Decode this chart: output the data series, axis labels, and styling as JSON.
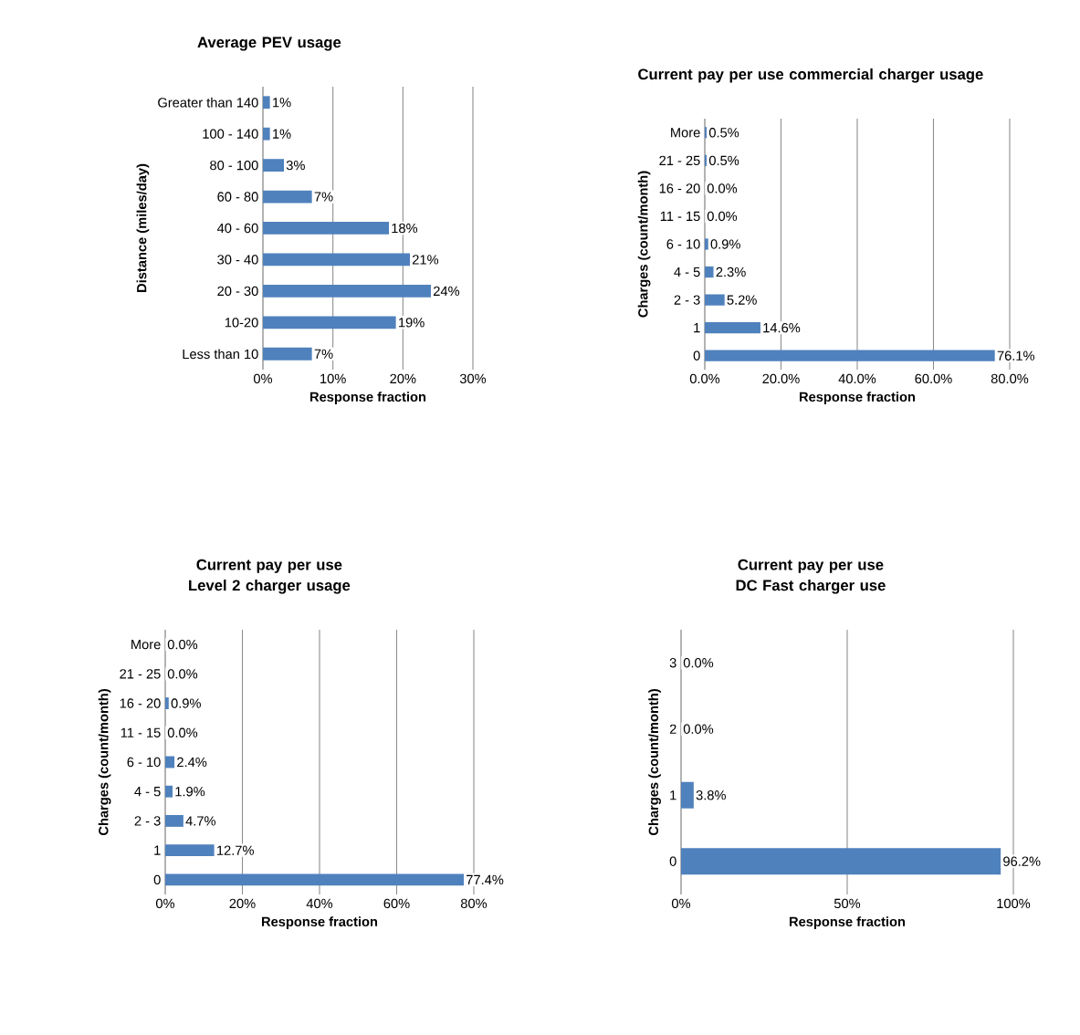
{
  "chart_data": [
    {
      "type": "bar",
      "orientation": "horizontal",
      "title": "Average PEV usage",
      "xlabel": "Response fraction",
      "ylabel": "Distance (miles/day)",
      "categories": [
        "Greater than 140",
        "100 - 140",
        "80 - 100",
        "60 - 80",
        "40 - 60",
        "30 - 40",
        "20 - 30",
        "10-20",
        "Less than 10"
      ],
      "values": [
        1,
        1,
        3,
        7,
        18,
        21,
        24,
        19,
        7
      ],
      "value_labels": [
        "1%",
        "1%",
        "3%",
        "7%",
        "18%",
        "21%",
        "24%",
        "19%",
        "7%"
      ],
      "color": "#4f81bd",
      "grid": "x",
      "xlim": [
        0,
        30
      ],
      "xticks": [
        {
          "value": 0,
          "label": "0%"
        },
        {
          "value": 10,
          "label": "10%"
        },
        {
          "value": 20,
          "label": "20%"
        },
        {
          "value": 30,
          "label": "30%"
        }
      ]
    },
    {
      "type": "bar",
      "orientation": "horizontal",
      "title": "Current pay per use commercial charger usage",
      "xlabel": "Response fraction",
      "ylabel": "Charges (count/month)",
      "categories": [
        "More",
        "21 - 25",
        "16 - 20",
        "11 - 15",
        "6 - 10",
        "4 - 5",
        "2 - 3",
        "1",
        "0"
      ],
      "values": [
        0.5,
        0.5,
        0.0,
        0.0,
        0.9,
        2.3,
        5.2,
        14.6,
        76.1
      ],
      "value_labels": [
        "0.5%",
        "0.5%",
        "0.0%",
        "0.0%",
        "0.9%",
        "2.3%",
        "5.2%",
        "14.6%",
        "76.1%"
      ],
      "color": "#4f81bd",
      "grid": "x",
      "xlim": [
        0,
        80
      ],
      "xticks": [
        {
          "value": 0,
          "label": "0.0%"
        },
        {
          "value": 20,
          "label": "20.0%"
        },
        {
          "value": 40,
          "label": "40.0%"
        },
        {
          "value": 60,
          "label": "60.0%"
        },
        {
          "value": 80,
          "label": "80.0%"
        }
      ]
    },
    {
      "type": "bar",
      "orientation": "horizontal",
      "title": "Current pay per use Level 2 charger usage",
      "xlabel": "Response fraction",
      "ylabel": "Charges (count/month)",
      "categories": [
        "More",
        "21 - 25",
        "16 - 20",
        "11 - 15",
        "6 - 10",
        "4 - 5",
        "2 - 3",
        "1",
        "0"
      ],
      "values": [
        0.0,
        0.0,
        0.9,
        0.0,
        2.4,
        1.9,
        4.7,
        12.7,
        77.4
      ],
      "value_labels": [
        "0.0%",
        "0.0%",
        "0.9%",
        "0.0%",
        "2.4%",
        "1.9%",
        "4.7%",
        "12.7%",
        "77.4%"
      ],
      "color": "#4f81bd",
      "grid": "x",
      "xlim": [
        0,
        80
      ],
      "xticks": [
        {
          "value": 0,
          "label": "0%"
        },
        {
          "value": 20,
          "label": "20%"
        },
        {
          "value": 40,
          "label": "40%"
        },
        {
          "value": 60,
          "label": "60%"
        },
        {
          "value": 80,
          "label": "80%"
        }
      ]
    },
    {
      "type": "bar",
      "orientation": "horizontal",
      "title": "Current pay per use DC Fast charger use",
      "xlabel": "Response fraction",
      "ylabel": "Charges (count/month)",
      "categories": [
        "3",
        "2",
        "1",
        "0"
      ],
      "values": [
        0.0,
        0.0,
        3.8,
        96.2
      ],
      "value_labels": [
        "0.0%",
        "0.0%",
        "3.8%",
        "96.2%"
      ],
      "color": "#4f81bd",
      "grid": "x",
      "xlim": [
        0,
        100
      ],
      "xticks": [
        {
          "value": 0,
          "label": "0%"
        },
        {
          "value": 50,
          "label": "50%"
        },
        {
          "value": 100,
          "label": "100%"
        }
      ]
    }
  ]
}
